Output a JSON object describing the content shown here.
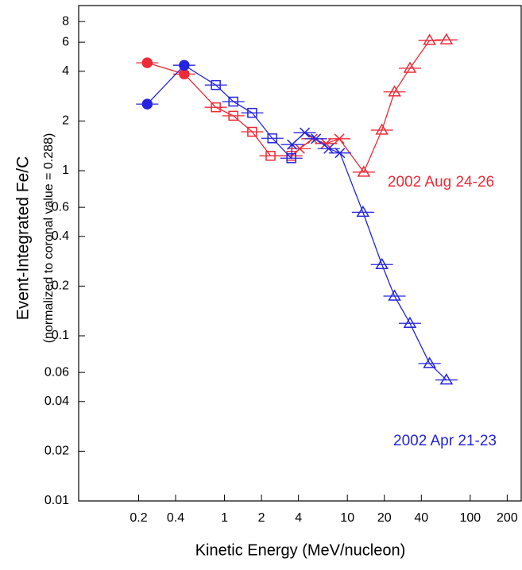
{
  "chart_data": {
    "type": "scatter",
    "x_label": "Kinetic Energy (MeV/nucleon)",
    "y_label": "Event-Integrated Fe/C",
    "y_sublabel": "(normalized to coronal value = 0.288)",
    "x_log": true,
    "y_log": true,
    "xlim": [
      0.065,
      260
    ],
    "ylim": [
      0.01,
      10
    ],
    "xticks": [
      0.2,
      0.4,
      1,
      2,
      4,
      10,
      20,
      40,
      100,
      200
    ],
    "yticks": [
      0.01,
      0.02,
      0.04,
      0.06,
      0.1,
      0.2,
      0.4,
      0.6,
      1,
      2,
      4,
      6,
      8
    ],
    "series": [
      {
        "name": "2002 Aug 24-26",
        "color": "#ee2a35",
        "x": [
          0.235,
          0.47,
          0.85,
          1.18,
          1.68,
          2.37,
          3.5,
          4.1,
          5.2,
          6.7,
          8.6,
          13.6,
          19.1,
          24.2,
          32.3,
          46.7,
          64
        ],
        "values": [
          4.5,
          3.85,
          2.42,
          2.15,
          1.72,
          1.23,
          1.23,
          1.36,
          1.56,
          1.46,
          1.56,
          0.98,
          1.76,
          3.0,
          4.17,
          6.15,
          6.2
        ],
        "markers": [
          "circle",
          "circle",
          "square",
          "square",
          "square",
          "square",
          "square",
          "cross",
          "cross",
          "cross",
          "cross",
          "triangle",
          "triangle",
          "triangle",
          "triangle",
          "triangle",
          "triangle"
        ]
      },
      {
        "name": "2002 Apr 21-23",
        "color": "#2424e0",
        "x": [
          0.235,
          0.47,
          0.85,
          1.18,
          1.68,
          2.45,
          3.5,
          3.55,
          4.5,
          5.55,
          7.05,
          8.7,
          13.4,
          19.1,
          24.2,
          32.3,
          46.7,
          64
        ],
        "values": [
          2.53,
          4.35,
          3.3,
          2.62,
          2.24,
          1.57,
          1.19,
          1.44,
          1.7,
          1.56,
          1.36,
          1.28,
          0.56,
          0.27,
          0.174,
          0.119,
          0.068,
          0.054
        ],
        "markers": [
          "circle",
          "circle",
          "square",
          "square",
          "square",
          "square",
          "square",
          "cross",
          "cross",
          "cross",
          "cross",
          "cross",
          "triangle",
          "triangle",
          "triangle",
          "triangle",
          "triangle",
          "triangle"
        ]
      }
    ]
  }
}
